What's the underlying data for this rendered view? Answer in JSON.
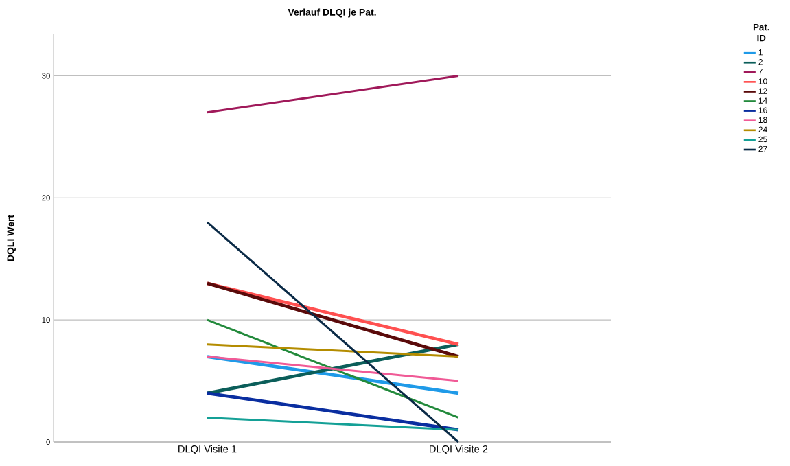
{
  "chart_data": {
    "type": "line",
    "title": "Verlauf DLQI je Pat.",
    "ylabel": "DQLI Wert",
    "legend_title": "Pat. ID",
    "categories": [
      "DLQI Visite 1",
      "DLQI Visite 2"
    ],
    "series": [
      {
        "name": "1",
        "color": "#1f9ae8",
        "values": [
          7,
          4
        ]
      },
      {
        "name": "2",
        "color": "#0b5e5a",
        "values": [
          4,
          8
        ]
      },
      {
        "name": "7",
        "color": "#a0195a",
        "values": [
          27,
          30
        ]
      },
      {
        "name": "10",
        "color": "#ff5050",
        "values": [
          13,
          8
        ]
      },
      {
        "name": "12",
        "color": "#5a0a0a",
        "values": [
          13,
          7
        ]
      },
      {
        "name": "14",
        "color": "#238a3c",
        "values": [
          10,
          2
        ]
      },
      {
        "name": "16",
        "color": "#0a2ea0",
        "values": [
          4,
          1
        ]
      },
      {
        "name": "18",
        "color": "#f05a96",
        "values": [
          7,
          5
        ]
      },
      {
        "name": "24",
        "color": "#b48c00",
        "values": [
          8,
          7
        ]
      },
      {
        "name": "25",
        "color": "#14a096",
        "values": [
          2,
          1
        ]
      },
      {
        "name": "27",
        "color": "#0a2a46",
        "values": [
          18,
          0
        ]
      }
    ],
    "ylim": [
      0,
      33.4
    ],
    "yticks": [
      0,
      10,
      20,
      30
    ],
    "grid": "y",
    "legend": "top right",
    "line_style": "solid",
    "marker": "none"
  }
}
